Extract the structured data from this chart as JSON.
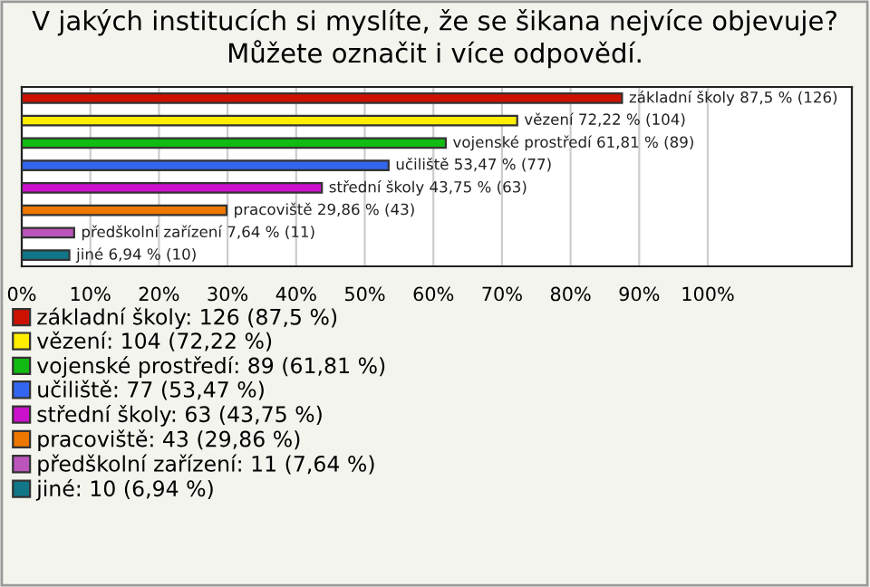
{
  "chart_data": {
    "type": "bar",
    "orientation": "horizontal",
    "title": "V jakých institucích si myslíte, že se šikana nejvíce objevuje? Můžete označit i více odpovědí.",
    "categories": [
      null,
      null,
      null,
      null,
      null,
      null,
      null,
      null
    ],
    "series": [
      {
        "name": "základní školy: 126 (87,5 %)",
        "color": "#cc1100",
        "values": [
          87.5,
          null,
          null,
          null,
          null,
          null,
          null,
          null
        ],
        "value_labels": [
          "základní školy 87,5 % (126)",
          null,
          null,
          null,
          null,
          null,
          null,
          null
        ]
      },
      {
        "name": "vězení: 104 (72,22 %)",
        "color": "#ffee00",
        "values": [
          null,
          72.22,
          null,
          null,
          null,
          null,
          null,
          null
        ],
        "value_labels": [
          null,
          "vězení 72,22 % (104)",
          null,
          null,
          null,
          null,
          null,
          null
        ]
      },
      {
        "name": "vojenské prostředí: 89 (61,81 %)",
        "color": "#11bb11",
        "values": [
          null,
          null,
          61.81,
          null,
          null,
          null,
          null,
          null
        ],
        "value_labels": [
          null,
          null,
          "vojenské prostředí 61,81 % (89)",
          null,
          null,
          null,
          null,
          null
        ]
      },
      {
        "name": "učiliště: 77 (53,47 %)",
        "color": "#3366ee",
        "values": [
          null,
          null,
          null,
          53.47,
          null,
          null,
          null,
          null
        ],
        "value_labels": [
          null,
          null,
          null,
          "učiliště 53,47 % (77)",
          null,
          null,
          null,
          null
        ]
      },
      {
        "name": "střední školy: 63 (43,75 %)",
        "color": "#cc11cc",
        "values": [
          null,
          null,
          null,
          null,
          43.75,
          null,
          null,
          null
        ],
        "value_labels": [
          null,
          null,
          null,
          null,
          "střední školy 43,75 % (63)",
          null,
          null,
          null
        ]
      },
      {
        "name": "pracoviště: 43 (29,86 %)",
        "color": "#ee7700",
        "values": [
          null,
          null,
          null,
          null,
          null,
          29.86,
          null,
          null
        ],
        "value_labels": [
          null,
          null,
          null,
          null,
          null,
          "pracoviště 29,86 % (43)",
          null,
          null
        ]
      },
      {
        "name": "předškolní zařízení: 11 (7,64 %)",
        "color": "#bb55bb",
        "values": [
          null,
          null,
          null,
          null,
          null,
          null,
          7.64,
          null
        ],
        "value_labels": [
          null,
          null,
          null,
          null,
          null,
          null,
          "předškolní zařízení 7,64 % (11)",
          null
        ]
      },
      {
        "name": "jiné: 10 (6,94 %)",
        "color": "#117788",
        "values": [
          null,
          null,
          null,
          null,
          null,
          null,
          null,
          6.94
        ],
        "value_labels": [
          null,
          null,
          null,
          null,
          null,
          null,
          null,
          "jiné 6,94 % (10)"
        ]
      }
    ],
    "xlim": [
      0,
      121
    ],
    "xticks": [
      {
        "value": 0,
        "label": "0%"
      },
      {
        "value": 10,
        "label": "10%"
      },
      {
        "value": 20,
        "label": "20%"
      },
      {
        "value": 30,
        "label": "30%"
      },
      {
        "value": 40,
        "label": "40%"
      },
      {
        "value": 50,
        "label": "50%"
      },
      {
        "value": 60,
        "label": "60%"
      },
      {
        "value": 70,
        "label": "70%"
      },
      {
        "value": 80,
        "label": "80%"
      },
      {
        "value": 90,
        "label": "90%"
      },
      {
        "value": 100,
        "label": "100%"
      }
    ],
    "tick_labels": "x",
    "grid": "x",
    "legend": "bottom"
  }
}
